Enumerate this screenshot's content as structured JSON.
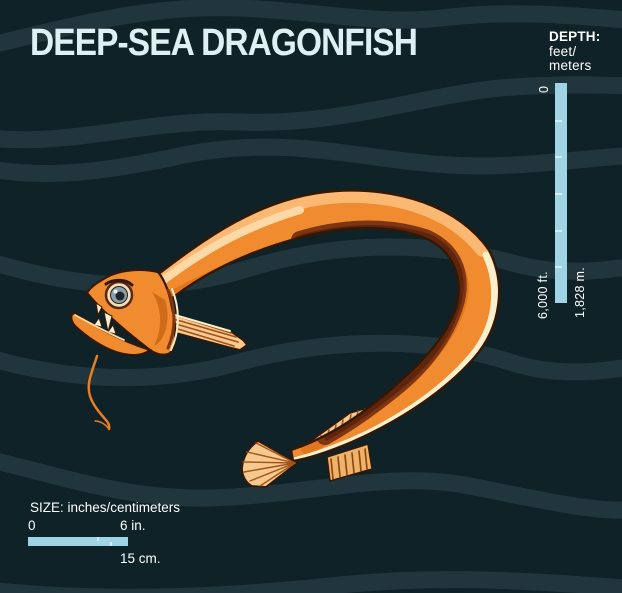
{
  "title": "DEEP-SEA DRAGONFISH",
  "depth_scale": {
    "heading": "DEPTH:",
    "unit_line1": "feet/",
    "unit_line2": "meters",
    "top_value": "0",
    "bottom_value_feet": "6,000 ft.",
    "bottom_value_meters": "1,828 m.",
    "segments": 6
  },
  "size_scale": {
    "heading": "SIZE: inches/centimeters",
    "start_value": "0",
    "inches_value": "6 in.",
    "cm_value": "15 cm."
  },
  "illustration": {
    "subject": "deep-sea dragonfish",
    "style": "orange vector fish with looped eel-like body, open jaw with fangs, chin barbel, striped pectoral fin, comb-like dorsal and anal fins, fan-shaped tail"
  },
  "colors": {
    "bg": "#0f2227",
    "wave": "#243941",
    "orange": "#f18b2f",
    "orange-mid": "#e2761c",
    "highlight": "#fbb872",
    "highlight-bright": "#fdd9a8",
    "maroon": "#7e3513",
    "maroon-deep": "#5f250c",
    "cream": "#f9efcc",
    "outline": "#331807",
    "fin-light": "#f6c98e",
    "fin-stripe": "#a2521a",
    "scale-blue": "#9fd4e5",
    "scale-tick": "#d6ecf4",
    "title": "#dff0f5",
    "text": "#ffffff",
    "eye-ring": "#efe0bf",
    "eye-iris": "#87a0ae",
    "eye-pupil": "#20242b"
  }
}
